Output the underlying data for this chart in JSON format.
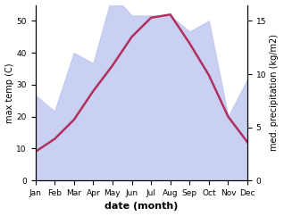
{
  "months": [
    "Jan",
    "Feb",
    "Mar",
    "Apr",
    "May",
    "Jun",
    "Jul",
    "Aug",
    "Sep",
    "Oct",
    "Nov",
    "Dec"
  ],
  "month_indices": [
    1,
    2,
    3,
    4,
    5,
    6,
    7,
    8,
    9,
    10,
    11,
    12
  ],
  "temp_max": [
    9,
    13,
    19,
    28,
    36,
    45,
    51,
    52,
    43,
    33,
    20,
    12
  ],
  "precipitation_mm": [
    8,
    6.5,
    12,
    11,
    17.5,
    15.5,
    15.5,
    15.5,
    14,
    15,
    6,
    9.5
  ],
  "temp_ylim": [
    0,
    55
  ],
  "precip_ylim": [
    0,
    16.5
  ],
  "precip_scale_factor": 3.333,
  "temp_color": "#b03060",
  "precip_fill_color": "#c0c8f0",
  "precip_fill_alpha": 0.85,
  "xlabel": "date (month)",
  "ylabel_left": "max temp (C)",
  "ylabel_right": "med. precipitation (kg/m2)",
  "background_color": "#ffffff",
  "temp_linewidth": 1.8,
  "fig_width": 3.18,
  "fig_height": 2.42,
  "dpi": 100,
  "left_yticks": [
    0,
    10,
    20,
    30,
    40,
    50
  ],
  "right_yticks": [
    0,
    5,
    10,
    15
  ],
  "tick_fontsize": 6.5,
  "label_fontsize": 7,
  "xlabel_fontsize": 8
}
